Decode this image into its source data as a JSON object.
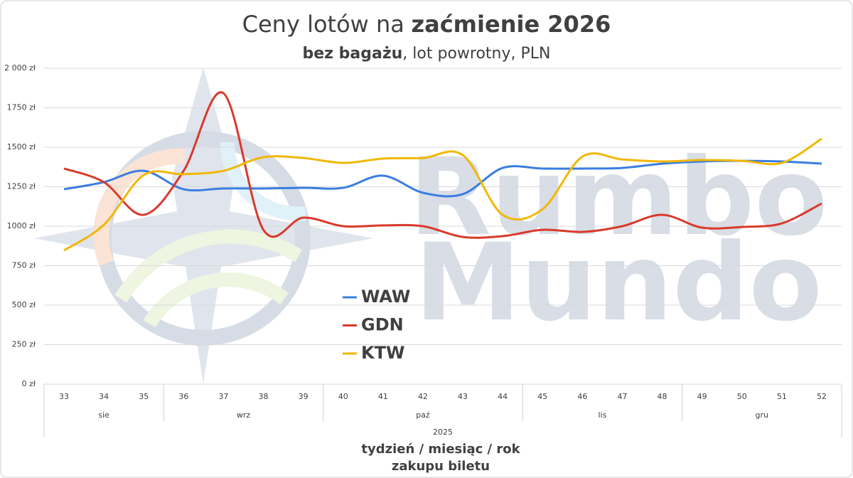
{
  "chart_data": {
    "type": "line",
    "title_parts": [
      {
        "text": "Ceny lotów na",
        "bold": false
      },
      {
        "text": "zaćmienie 2026",
        "bold": true
      }
    ],
    "subtitle_parts": [
      {
        "text": "bez bagażu",
        "bold": true
      },
      {
        "text": ", lot powrotny, PLN",
        "bold": false
      }
    ],
    "x_label": [
      "tydzień / miesiąc / rok",
      "zakupu biletu"
    ],
    "watermark": [
      "Rumbo",
      "Mundo"
    ],
    "categories": [
      "33",
      "34",
      "35",
      "36",
      "37",
      "38",
      "39",
      "40",
      "41",
      "42",
      "43",
      "44",
      "45",
      "46",
      "47",
      "48",
      "49",
      "50",
      "51",
      "52"
    ],
    "months": [
      {
        "label": "sie",
        "span": 3
      },
      {
        "label": "wrz",
        "span": 4
      },
      {
        "label": "paź",
        "span": 5
      },
      {
        "label": "lis",
        "span": 4
      },
      {
        "label": "gru",
        "span": 4
      }
    ],
    "year": "2025",
    "series": [
      {
        "name": "WAW",
        "color": "#3a7de0",
        "values": [
          1234,
          1279,
          1351,
          1234,
          1239,
          1239,
          1243,
          1243,
          1320,
          1212,
          1203,
          1369,
          1365,
          1365,
          1369,
          1396,
          1410,
          1414,
          1410,
          1396
        ]
      },
      {
        "name": "GDN",
        "color": "#d93a2b",
        "values": [
          1365,
          1279,
          1072,
          1351,
          1842,
          977,
          1054,
          1000,
          1005,
          1000,
          932,
          937,
          977,
          964,
          1000,
          1072,
          991,
          995,
          1018,
          1144
        ]
      },
      {
        "name": "KTW",
        "color": "#f2b705",
        "values": [
          847,
          1009,
          1324,
          1329,
          1351,
          1437,
          1432,
          1401,
          1428,
          1432,
          1450,
          1072,
          1108,
          1441,
          1423,
          1410,
          1419,
          1414,
          1401,
          1554
        ]
      }
    ],
    "ylim": [
      0,
      2000
    ],
    "yticks": [
      {
        "value": 0,
        "label": "0 zł"
      },
      {
        "value": 250,
        "label": "250 zł"
      },
      {
        "value": 500,
        "label": "500 zł"
      },
      {
        "value": 750,
        "label": "750 zł"
      },
      {
        "value": 1000,
        "label": "1000 zł"
      },
      {
        "value": 1250,
        "label": "1250 zł"
      },
      {
        "value": 1500,
        "label": "1500 zł"
      },
      {
        "value": 1750,
        "label": "1750 zł"
      },
      {
        "value": 2000,
        "label": "2 000 zł"
      }
    ],
    "grid": true,
    "smooth": true
  }
}
